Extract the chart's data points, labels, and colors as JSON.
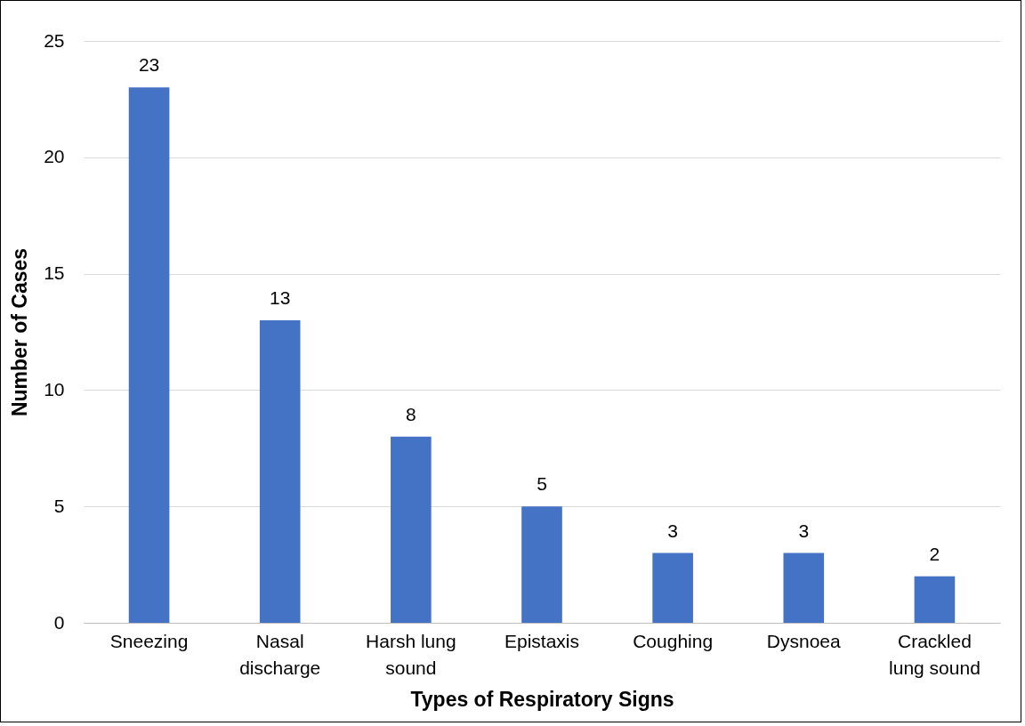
{
  "chart_data": {
    "type": "bar",
    "xlabel": "Types of Respiratory Signs",
    "ylabel": "Number of Cases",
    "categories": [
      "Sneezing",
      "Nasal discharge",
      "Harsh lung sound",
      "Epistaxis",
      "Coughing",
      "Dysnoea",
      "Crackled lung sound"
    ],
    "values": [
      23,
      13,
      8,
      5,
      3,
      3,
      2
    ],
    "color": "#4472c4",
    "ylim": [
      0,
      25
    ],
    "yticks": [
      0,
      5,
      10,
      15,
      20,
      25
    ],
    "grid": "y",
    "data_labels": true
  }
}
